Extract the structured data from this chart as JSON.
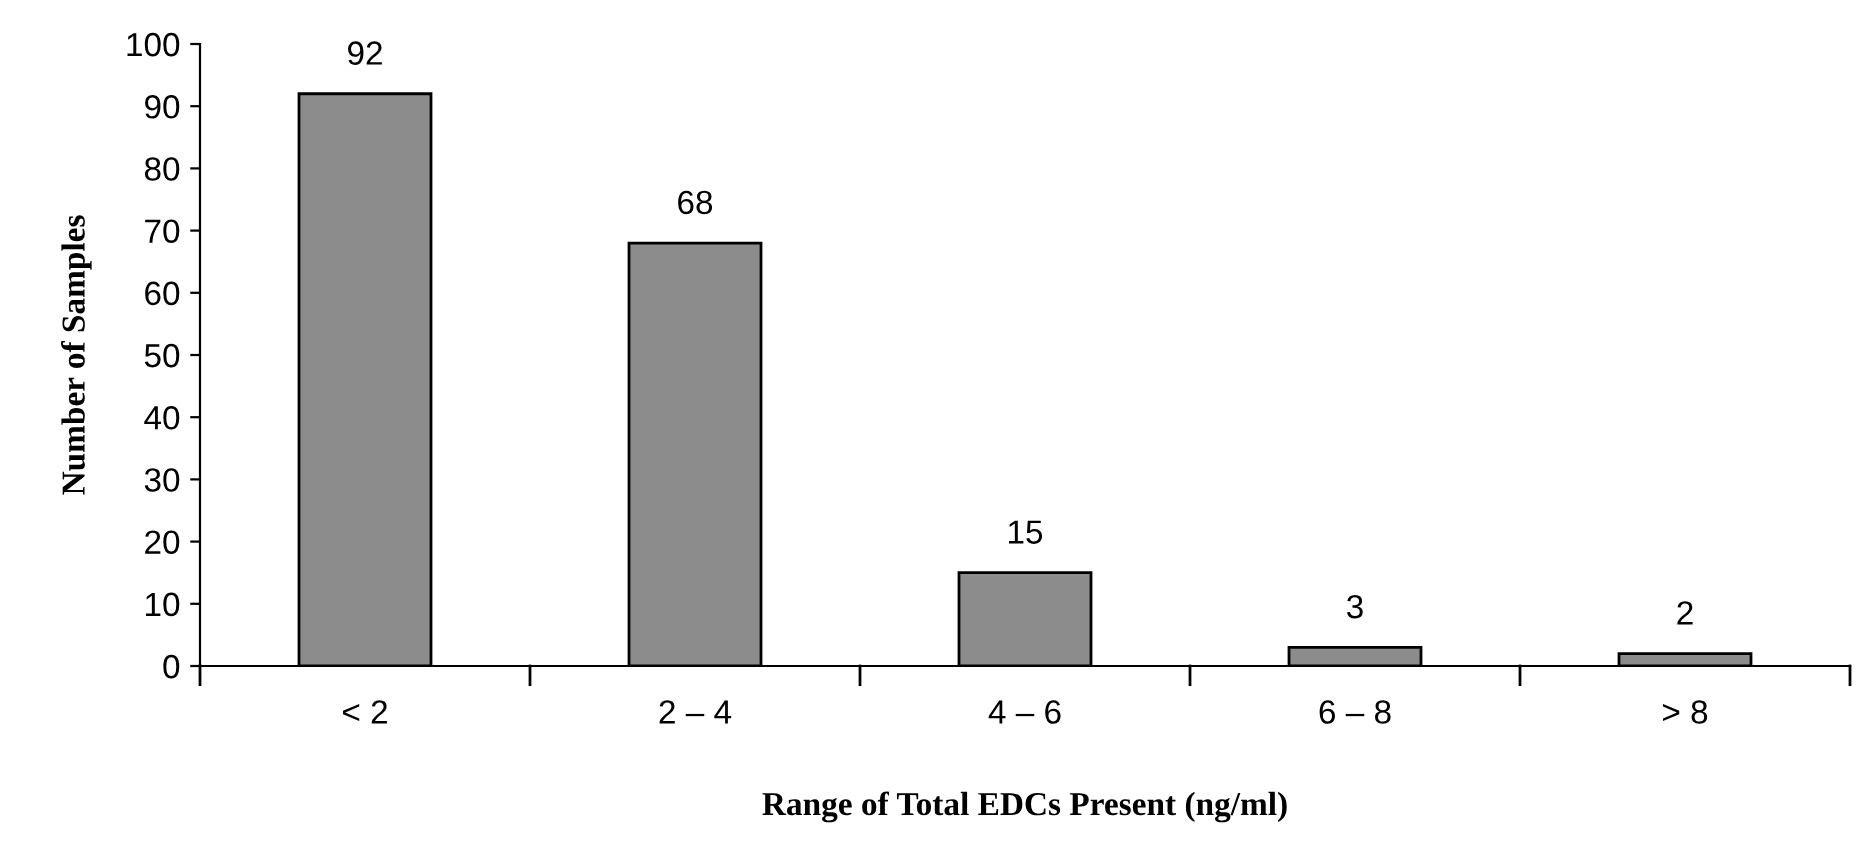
{
  "chart_data": {
    "type": "bar",
    "xlabel": "Range of Total EDCs Present (ng/ml)",
    "ylabel": "Number of Samples",
    "categories": [
      "< 2",
      "2 – 4",
      "4 – 6",
      "6 – 8",
      "> 8"
    ],
    "values": [
      92,
      68,
      15,
      3,
      2
    ],
    "color": "#8c8c8c",
    "ylim": [
      0,
      100
    ],
    "yticks": [
      0,
      10,
      20,
      30,
      40,
      50,
      60,
      70,
      80,
      90,
      100
    ],
    "grid": false,
    "legend": false,
    "data_labels": true
  }
}
